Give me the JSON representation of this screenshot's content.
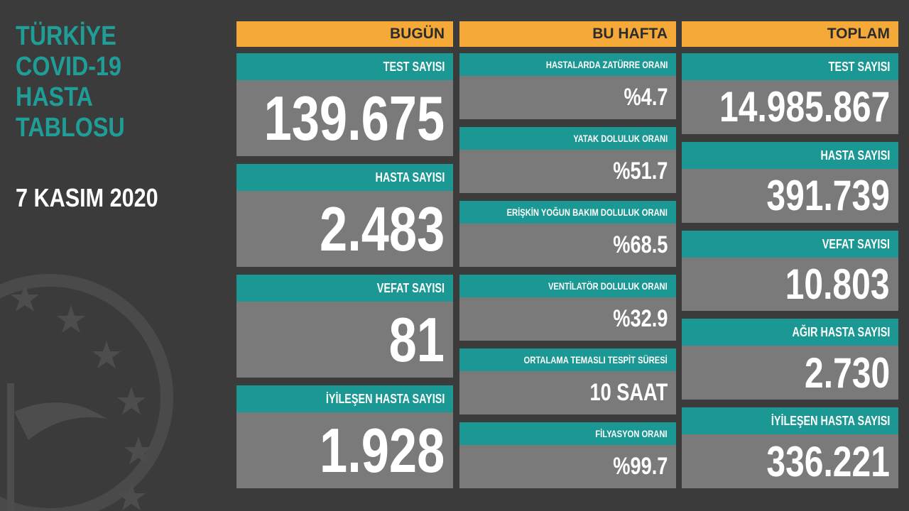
{
  "title": [
    "TÜRKİYE",
    "COVID-19",
    "HASTA",
    "TABLOSU"
  ],
  "date": "7 KASIM 2020",
  "columns": [
    {
      "header": "BUGÜN",
      "cards": [
        {
          "label": "TEST SAYISI",
          "value": "139.675"
        },
        {
          "label": "HASTA SAYISI",
          "value": "2.483"
        },
        {
          "label": "VEFAT SAYISI",
          "value": "81"
        },
        {
          "label": "İYİLEŞEN HASTA SAYISI",
          "value": "1.928"
        }
      ]
    },
    {
      "header": "BU HAFTA",
      "cards": [
        {
          "label": "HASTALARDA ZATÜRRE ORANI",
          "value": "%4.7"
        },
        {
          "label": "YATAK DOLULUK ORANI",
          "value": "%51.7"
        },
        {
          "label": "ERİŞKİN YOĞUN BAKIM DOLULUK ORANI",
          "value": "%68.5"
        },
        {
          "label": "VENTİLATÖR DOLULUK ORANI",
          "value": "%32.9"
        },
        {
          "label": "ORTALAMA TEMASLI TESPİT SÜRESİ",
          "value": "10 SAAT"
        },
        {
          "label": "FİLYASYON ORANI",
          "value": "%99.7"
        }
      ]
    },
    {
      "header": "TOPLAM",
      "cards": [
        {
          "label": "TEST SAYISI",
          "value": "14.985.867"
        },
        {
          "label": "HASTA SAYISI",
          "value": "391.739"
        },
        {
          "label": "VEFAT SAYISI",
          "value": "10.803"
        },
        {
          "label": "AĞIR HASTA SAYISI",
          "value": "2.730"
        },
        {
          "label": "İYİLEŞEN HASTA SAYISI",
          "value": "336.221"
        }
      ]
    }
  ]
}
